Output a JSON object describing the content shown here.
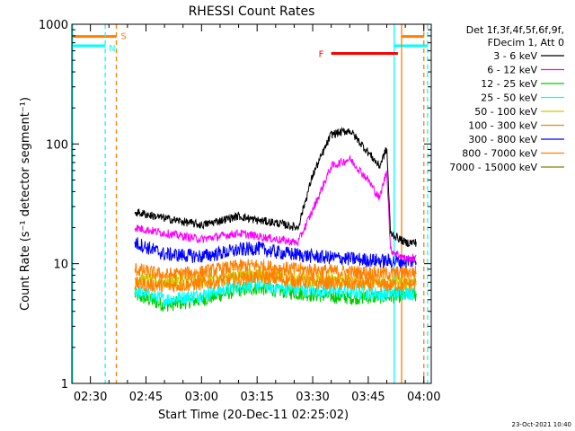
{
  "chart_data": {
    "type": "line",
    "title": "RHESSI Count Rates",
    "xlabel": "Start Time (20-Dec-11 02:25:02)",
    "ylabel": "Count Rate (s⁻¹ detector segment⁻¹)",
    "y_scale": "log",
    "ylim": [
      1,
      1000
    ],
    "xlim": [
      "02:25",
      "04:02"
    ],
    "x_ticks": [
      "02:30",
      "02:45",
      "03:00",
      "03:15",
      "03:30",
      "03:45",
      "04:00"
    ],
    "y_ticks": [
      "1",
      "10",
      "100",
      "1000"
    ],
    "legend_header": [
      "Det 1f,3f,4f,5f,6f,9f,",
      "FDecim 1, Att 0"
    ],
    "legend_position": "right",
    "series": [
      {
        "name": "3 - 6 keV",
        "color": "#000000",
        "x": [
          "02:42",
          "02:50",
          "03:00",
          "03:10",
          "03:15",
          "03:20",
          "03:26",
          "03:30",
          "03:35",
          "03:40",
          "03:45",
          "03:48",
          "03:50",
          "03:51",
          "03:55",
          "03:58"
        ],
        "values": [
          27,
          24,
          21,
          25,
          23,
          22,
          20,
          55,
          120,
          130,
          85,
          65,
          92,
          18,
          15,
          15
        ]
      },
      {
        "name": "6 - 12 keV",
        "color": "#ff00ff",
        "x": [
          "02:42",
          "02:50",
          "03:00",
          "03:10",
          "03:15",
          "03:20",
          "03:26",
          "03:30",
          "03:35",
          "03:40",
          "03:45",
          "03:48",
          "03:50",
          "03:51",
          "03:55",
          "03:58"
        ],
        "values": [
          20,
          18,
          16,
          18,
          17,
          16,
          15,
          28,
          65,
          75,
          50,
          35,
          60,
          13,
          11,
          11
        ]
      },
      {
        "name": "12 - 25 keV",
        "color": "#00cc00",
        "x": [
          "02:42",
          "02:50",
          "03:00",
          "03:10",
          "03:15",
          "03:20",
          "03:30",
          "03:40",
          "03:50",
          "03:58"
        ],
        "values": [
          5.5,
          4.5,
          5,
          6,
          6.3,
          6,
          5.5,
          5.2,
          5.3,
          5.5
        ]
      },
      {
        "name": "25 - 50 keV",
        "color": "#00ffff",
        "x": [
          "02:42",
          "02:50",
          "03:00",
          "03:10",
          "03:15",
          "03:20",
          "03:30",
          "03:40",
          "03:50",
          "03:58"
        ],
        "values": [
          6,
          5,
          5.5,
          6.5,
          6.8,
          6.3,
          6,
          5.8,
          5.6,
          5.8
        ]
      },
      {
        "name": "50 - 100 keV",
        "color": "#cccc00",
        "x": [
          "02:42",
          "02:50",
          "03:00",
          "03:10",
          "03:15",
          "03:20",
          "03:30",
          "03:40",
          "03:50",
          "03:58"
        ],
        "values": [
          7.5,
          7,
          7.2,
          8,
          8.2,
          7.8,
          7.4,
          7.2,
          7,
          7.2
        ]
      },
      {
        "name": "100 - 300 keV",
        "color": "#ff7f00",
        "x": [
          "02:42",
          "02:50",
          "03:00",
          "03:10",
          "03:15",
          "03:20",
          "03:30",
          "03:40",
          "03:50",
          "03:58"
        ],
        "values": [
          9,
          8,
          8.5,
          9.5,
          9.7,
          9.2,
          8.8,
          8.5,
          8.3,
          8.5
        ]
      },
      {
        "name": "300 - 800 keV",
        "color": "#0000ff",
        "x": [
          "02:42",
          "02:50",
          "03:00",
          "03:10",
          "03:15",
          "03:20",
          "03:30",
          "03:40",
          "03:50",
          "03:58"
        ],
        "values": [
          15,
          12,
          11.5,
          13,
          13.5,
          12.5,
          11.5,
          11,
          10.5,
          10.5
        ]
      },
      {
        "name": "800 - 7000 keV",
        "color": "#ff8000",
        "x": [
          "02:42",
          "02:50",
          "03:00",
          "03:10",
          "03:15",
          "03:20",
          "03:30",
          "03:40",
          "03:50",
          "03:58"
        ],
        "values": [
          6.8,
          6.5,
          6.8,
          7.5,
          7.8,
          7.5,
          7,
          6.8,
          6.6,
          6.8
        ]
      },
      {
        "name": "7000 - 15000 keV",
        "color": "#808000",
        "x": [
          "02:42",
          "02:58"
        ],
        "values": [
          null,
          null
        ]
      }
    ],
    "flare_marker": {
      "label": "F",
      "color": "#ff0000",
      "start": "03:35",
      "end": "03:53",
      "level": 570
    },
    "saa_marker": {
      "label": "S",
      "color": "#ff7f00",
      "level": 790
    },
    "night_marker": {
      "label": "N",
      "color": "#00ffff",
      "level": 660
    },
    "timestamp": "23-Oct-2021 10:40"
  },
  "colors": {
    "flare": "#ff0000",
    "saa": "#ff7f00",
    "night": "#00ffff",
    "axes": "#000000"
  }
}
